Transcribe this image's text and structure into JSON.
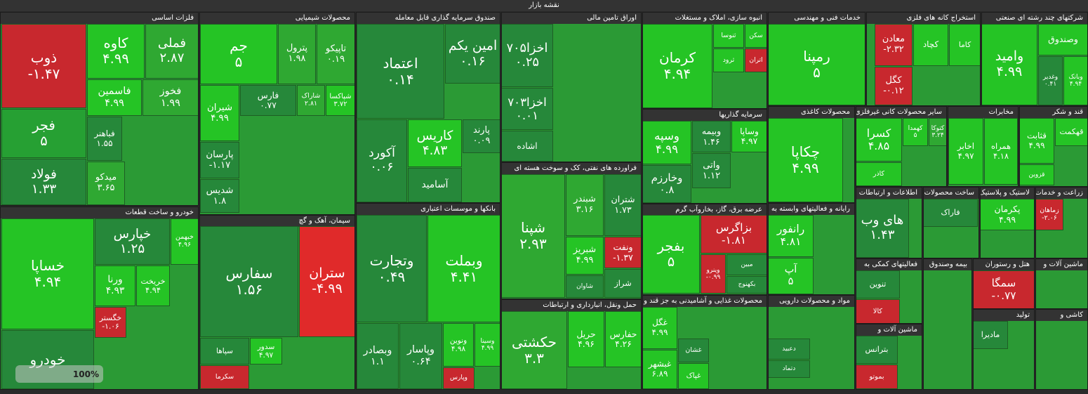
{
  "header": {
    "title": "نقشه بازار"
  },
  "sectors": [
    {
      "name": "فلزات اساسی",
      "tiles": [
        {
          "symbol": "ذوب",
          "change": "-۱.۴۷",
          "color": "#c8282e"
        },
        {
          "symbol": "فجر",
          "change": "۵",
          "color": "#26a033"
        },
        {
          "symbol": "فولاد",
          "change": "۱.۳۳",
          "color": "#26883a"
        },
        {
          "symbol": "کاوه",
          "change": "۴.۹۹",
          "color": "#25c425"
        },
        {
          "symbol": "فملی",
          "change": "۲.۸۷",
          "color": "#2fa832"
        },
        {
          "symbol": "فاسمین",
          "change": "۴.۹۹",
          "color": "#25c425"
        },
        {
          "symbol": "فخوز",
          "change": "۱.۹۹",
          "color": "#2fa832"
        },
        {
          "symbol": "فباهنر",
          "change": "۱.۵۵",
          "color": "#26883a"
        },
        {
          "symbol": "میدکو",
          "change": "۳.۶۵",
          "color": "#2fa832"
        }
      ]
    },
    {
      "name": "محصولات شیمیایی",
      "tiles": [
        {
          "symbol": "جم",
          "change": "۵",
          "color": "#25c425"
        },
        {
          "symbol": "پترول",
          "change": "۱.۹۸",
          "color": "#2fa832"
        },
        {
          "symbol": "تاپیکو",
          "change": "۰.۱۹",
          "color": "#2fa832"
        },
        {
          "symbol": "شیران",
          "change": "۴.۹۹",
          "color": "#25c425"
        },
        {
          "symbol": "فارس",
          "change": "۰.۷۷",
          "color": "#26883a"
        },
        {
          "symbol": "شاراک",
          "change": "۲.۸۱",
          "color": "#2fa832"
        },
        {
          "symbol": "شپاکسا",
          "change": "۳.۷۲",
          "color": "#25c425"
        },
        {
          "symbol": "پارسان",
          "change": "-۱.۱۷",
          "color": "#26883a"
        },
        {
          "symbol": "شدیس",
          "change": "۱.۸",
          "color": "#26883a"
        }
      ]
    },
    {
      "name": "خودرو و ساخت قطعات",
      "tiles": [
        {
          "symbol": "خساپا",
          "change": "۴.۹۴",
          "color": "#25c425"
        },
        {
          "symbol": "خپارس",
          "change": "۱.۲۵",
          "color": "#26883a"
        },
        {
          "symbol": "خبهمن",
          "change": "۴.۹۶",
          "color": "#25c425"
        },
        {
          "symbol": "ورنا",
          "change": "۴.۹۳",
          "color": "#25c425"
        },
        {
          "symbol": "خریخت",
          "change": "۴.۹۴",
          "color": "#25c425"
        },
        {
          "symbol": "خگستر",
          "change": "-۱.۰۶",
          "color": "#c8282e"
        },
        {
          "symbol": "خودرو",
          "color": "#26883a"
        }
      ]
    },
    {
      "name": "سیمان، آهک و گچ",
      "tiles": [
        {
          "symbol": "سفارس",
          "change": "۱.۵۶",
          "color": "#26883a"
        },
        {
          "symbol": "ستران",
          "change": "-۴.۹۹",
          "color": "#e02a2a"
        },
        {
          "symbol": "سپاها",
          "color": "#26883a"
        },
        {
          "symbol": "سدور",
          "change": "۴.۹۷",
          "color": "#25c425"
        },
        {
          "symbol": "سکرما",
          "color": "#c8282e"
        }
      ]
    },
    {
      "name": "صندوق سرمایه گذاری قابل معامله",
      "tiles": [
        {
          "symbol": "اعتماد",
          "change": "۰.۱۴",
          "color": "#26883a"
        },
        {
          "symbol": "امین یکم",
          "change": "۰.۱۶",
          "color": "#26883a"
        },
        {
          "symbol": "آکورد",
          "change": "۰.۰۶",
          "color": "#26883a"
        },
        {
          "symbol": "کاریس",
          "change": "۴.۸۳",
          "color": "#25c425"
        },
        {
          "symbol": "پارند",
          "change": "۰.۰۹",
          "color": "#26883a"
        },
        {
          "symbol": "آسامید",
          "color": "#26883a"
        }
      ]
    },
    {
      "name": "بانکها و موسسات اعتباری",
      "tiles": [
        {
          "symbol": "وتجارت",
          "change": "۰.۴۹",
          "color": "#26883a"
        },
        {
          "symbol": "وبملت",
          "change": "۴.۴۱",
          "color": "#25c425"
        },
        {
          "symbol": "وبصادر",
          "change": "۱.۱",
          "color": "#26883a"
        },
        {
          "symbol": "وپاسار",
          "change": "۰.۶۴",
          "color": "#26883a"
        },
        {
          "symbol": "ونوین",
          "change": "۴.۹۸",
          "color": "#25c425"
        },
        {
          "symbol": "وسینا",
          "change": "۴.۹۹",
          "color": "#25c425"
        },
        {
          "symbol": "وپارس",
          "color": "#c8282e"
        }
      ]
    },
    {
      "name": "اوراق تامین مالی",
      "tiles": [
        {
          "symbol": "اخزا۷۰۵",
          "change": "۰.۲۵",
          "color": "#26883a"
        },
        {
          "symbol": "اخزا۷۰۳",
          "change": "۰.۰۱",
          "color": "#26883a"
        },
        {
          "symbol": "اشاده",
          "color": "#26883a"
        }
      ]
    },
    {
      "name": "فراورده های نفتی، کک و سوخت هسته ای",
      "tiles": [
        {
          "symbol": "شپنا",
          "change": "۲.۹۳",
          "color": "#2fa832"
        },
        {
          "symbol": "شبندر",
          "change": "۳.۱۶",
          "color": "#2fa832"
        },
        {
          "symbol": "شتران",
          "change": "۱.۷۳",
          "color": "#26883a"
        },
        {
          "symbol": "شبریز",
          "change": "۴.۹۹",
          "color": "#25c425"
        },
        {
          "symbol": "ونفت",
          "change": "-۱.۳۷",
          "color": "#c8282e"
        },
        {
          "symbol": "شاوان",
          "color": "#26883a"
        },
        {
          "symbol": "شراز",
          "color": "#26883a"
        }
      ]
    },
    {
      "name": "حمل ونقل، انبارداری و ارتباطات",
      "tiles": [
        {
          "symbol": "حکشتی",
          "change": "۳.۳",
          "color": "#2fa832"
        },
        {
          "symbol": "حریل",
          "change": "۴.۹۶",
          "color": "#25c425"
        },
        {
          "symbol": "حفارس",
          "change": "۴.۲۶",
          "color": "#25c425"
        }
      ]
    },
    {
      "name": "انبوه سازی، املاک و مستغلات",
      "tiles": [
        {
          "symbol": "کرمان",
          "change": "۴.۹۴",
          "color": "#25c425"
        },
        {
          "symbol": "ثنوسا",
          "color": "#25c425"
        },
        {
          "symbol": "سکن",
          "color": "#25c425"
        },
        {
          "symbol": "ثرود",
          "color": "#25c425"
        },
        {
          "symbol": "اتران",
          "color": "#c8282e"
        }
      ]
    },
    {
      "name": "خدمات فنی و مهندسی",
      "tiles": [
        {
          "symbol": "رمپنا",
          "change": "۵",
          "color": "#25c425"
        }
      ]
    },
    {
      "name": "استخراج کانه های فلزی",
      "tiles": [
        {
          "symbol": "معادن",
          "change": "-۲.۳۲",
          "color": "#c8282e"
        },
        {
          "symbol": "کچاد",
          "color": "#25c425"
        },
        {
          "symbol": "کاما",
          "color": "#25c425"
        },
        {
          "symbol": "کگل",
          "change": "-۰.۱۲",
          "color": "#c8282e"
        }
      ]
    },
    {
      "name": "شرکتهای چند رشته ای صنعتی",
      "tiles": [
        {
          "symbol": "وامید",
          "change": "۴.۹۹",
          "color": "#25c425"
        },
        {
          "symbol": "وصندوق",
          "color": "#25c425"
        },
        {
          "symbol": "وغدیر",
          "change": "۰.۴۱",
          "color": "#26883a"
        },
        {
          "symbol": "وبانک",
          "change": "۴.۹۴",
          "color": "#25c425"
        }
      ]
    },
    {
      "name": "سرمایه گذاریها",
      "tiles": [
        {
          "symbol": "وسپه",
          "change": "۴.۹۹",
          "color": "#25c425"
        },
        {
          "symbol": "وبیمه",
          "change": "۱.۴۶",
          "color": "#26883a"
        },
        {
          "symbol": "وساپا",
          "change": "۴.۹۷",
          "color": "#25c425"
        },
        {
          "symbol": "وخارزم",
          "change": "۰.۸",
          "color": "#26883a"
        },
        {
          "symbol": "واتی",
          "change": "۱.۱۲",
          "color": "#26883a"
        }
      ]
    },
    {
      "name": "محصولات کاغذی",
      "tiles": [
        {
          "symbol": "چکاپا",
          "change": "۴.۹۹",
          "color": "#25c425"
        }
      ]
    },
    {
      "name": "سایر محصولات کانی غیرفلزی",
      "tiles": [
        {
          "symbol": "کسرا",
          "change": "۴.۸۵",
          "color": "#25c425"
        },
        {
          "symbol": "کهمدا",
          "change": "۵",
          "color": "#25c425"
        },
        {
          "symbol": "کتوکا",
          "change": "۳.۲۴",
          "color": "#2fa832"
        },
        {
          "symbol": "کاذر",
          "color": "#25c425"
        }
      ]
    },
    {
      "name": "مخابرات",
      "tiles": [
        {
          "symbol": "اخابر",
          "change": "۴.۹۷",
          "color": "#25c425"
        },
        {
          "symbol": "همراه",
          "change": "۴.۱۸",
          "color": "#25c425"
        }
      ]
    },
    {
      "name": "قند و شکر",
      "tiles": [
        {
          "symbol": "قثابت",
          "change": "۴.۹۹",
          "color": "#25c425"
        },
        {
          "symbol": "قهکمت",
          "color": "#25c425"
        },
        {
          "symbol": "قزوین",
          "color": "#25c425"
        }
      ]
    },
    {
      "name": "عرضه برق، گاز، بخاروآب گرم",
      "tiles": [
        {
          "symbol": "بفجر",
          "change": "۵",
          "color": "#25c425"
        },
        {
          "symbol": "بزاگرس",
          "change": "-۱.۸۱",
          "color": "#c8282e"
        },
        {
          "symbol": "وینرو",
          "change": "-۰.۹۹",
          "color": "#c8282e"
        },
        {
          "symbol": "مبین",
          "color": "#26883a"
        },
        {
          "symbol": "بکهنوج",
          "color": "#26883a"
        }
      ]
    },
    {
      "name": "رایانه و فعالیتهای وابسته به",
      "tiles": [
        {
          "symbol": "رانفور",
          "change": "۴.۸۱",
          "color": "#25c425"
        },
        {
          "symbol": "آپ",
          "change": "۵",
          "color": "#25c425"
        }
      ]
    },
    {
      "name": "اطلاعات و ارتباطات",
      "tiles": [
        {
          "symbol": "های وب",
          "change": "۱.۴۳",
          "color": "#26883a"
        }
      ]
    },
    {
      "name": "ساخت محصولات فلزی",
      "tiles": [
        {
          "symbol": "فاراک",
          "color": "#26883a"
        }
      ]
    },
    {
      "name": "لاستیک و پلاستیک",
      "tiles": [
        {
          "symbol": "پکرمان",
          "change": "۴.۹۹",
          "color": "#25c425"
        }
      ]
    },
    {
      "name": "زراعت و خدمات",
      "tiles": [
        {
          "symbol": "زماهان",
          "change": "-۲.۰۶",
          "color": "#c8282e"
        }
      ]
    },
    {
      "name": "محصولات غذایی و آشامیدنی به جز قند و شکر",
      "tiles": [
        {
          "symbol": "غگل",
          "change": "۴.۹۹",
          "color": "#25c425"
        },
        {
          "symbol": "غبشهر",
          "change": "۶.۸۹",
          "color": "#25c425"
        },
        {
          "symbol": "غشان",
          "color": "#26883a"
        },
        {
          "symbol": "غپاک",
          "color": "#25c425"
        }
      ]
    },
    {
      "name": "مواد و محصولات دارویی",
      "tiles": [
        {
          "symbol": "دعبید",
          "color": "#26883a"
        },
        {
          "symbol": "دتماد",
          "color": "#26883a"
        }
      ]
    },
    {
      "name": "فعالیتهای کمکی به",
      "tiles": [
        {
          "symbol": "تنوین",
          "color": "#26883a"
        },
        {
          "symbol": "کالا",
          "color": "#c8282e"
        }
      ]
    },
    {
      "name": "بیمه وصندوق",
      "tiles": []
    },
    {
      "name": "هتل و رستوران",
      "tiles": [
        {
          "symbol": "سمگا",
          "change": "-۰.۷۷",
          "color": "#c8282e"
        }
      ]
    },
    {
      "name": "ماشین آلات و",
      "tiles": []
    },
    {
      "name": "ماشین آلات و",
      "tiles": [
        {
          "symbol": "بترانس",
          "color": "#26883a"
        },
        {
          "symbol": "بموتو",
          "color": "#c8282e"
        }
      ]
    },
    {
      "name": "تولید",
      "tiles": [
        {
          "symbol": "مادیرا",
          "color": "#26883a"
        }
      ]
    },
    {
      "name": "کاشی و",
      "tiles": []
    }
  ],
  "zoom": "100%"
}
